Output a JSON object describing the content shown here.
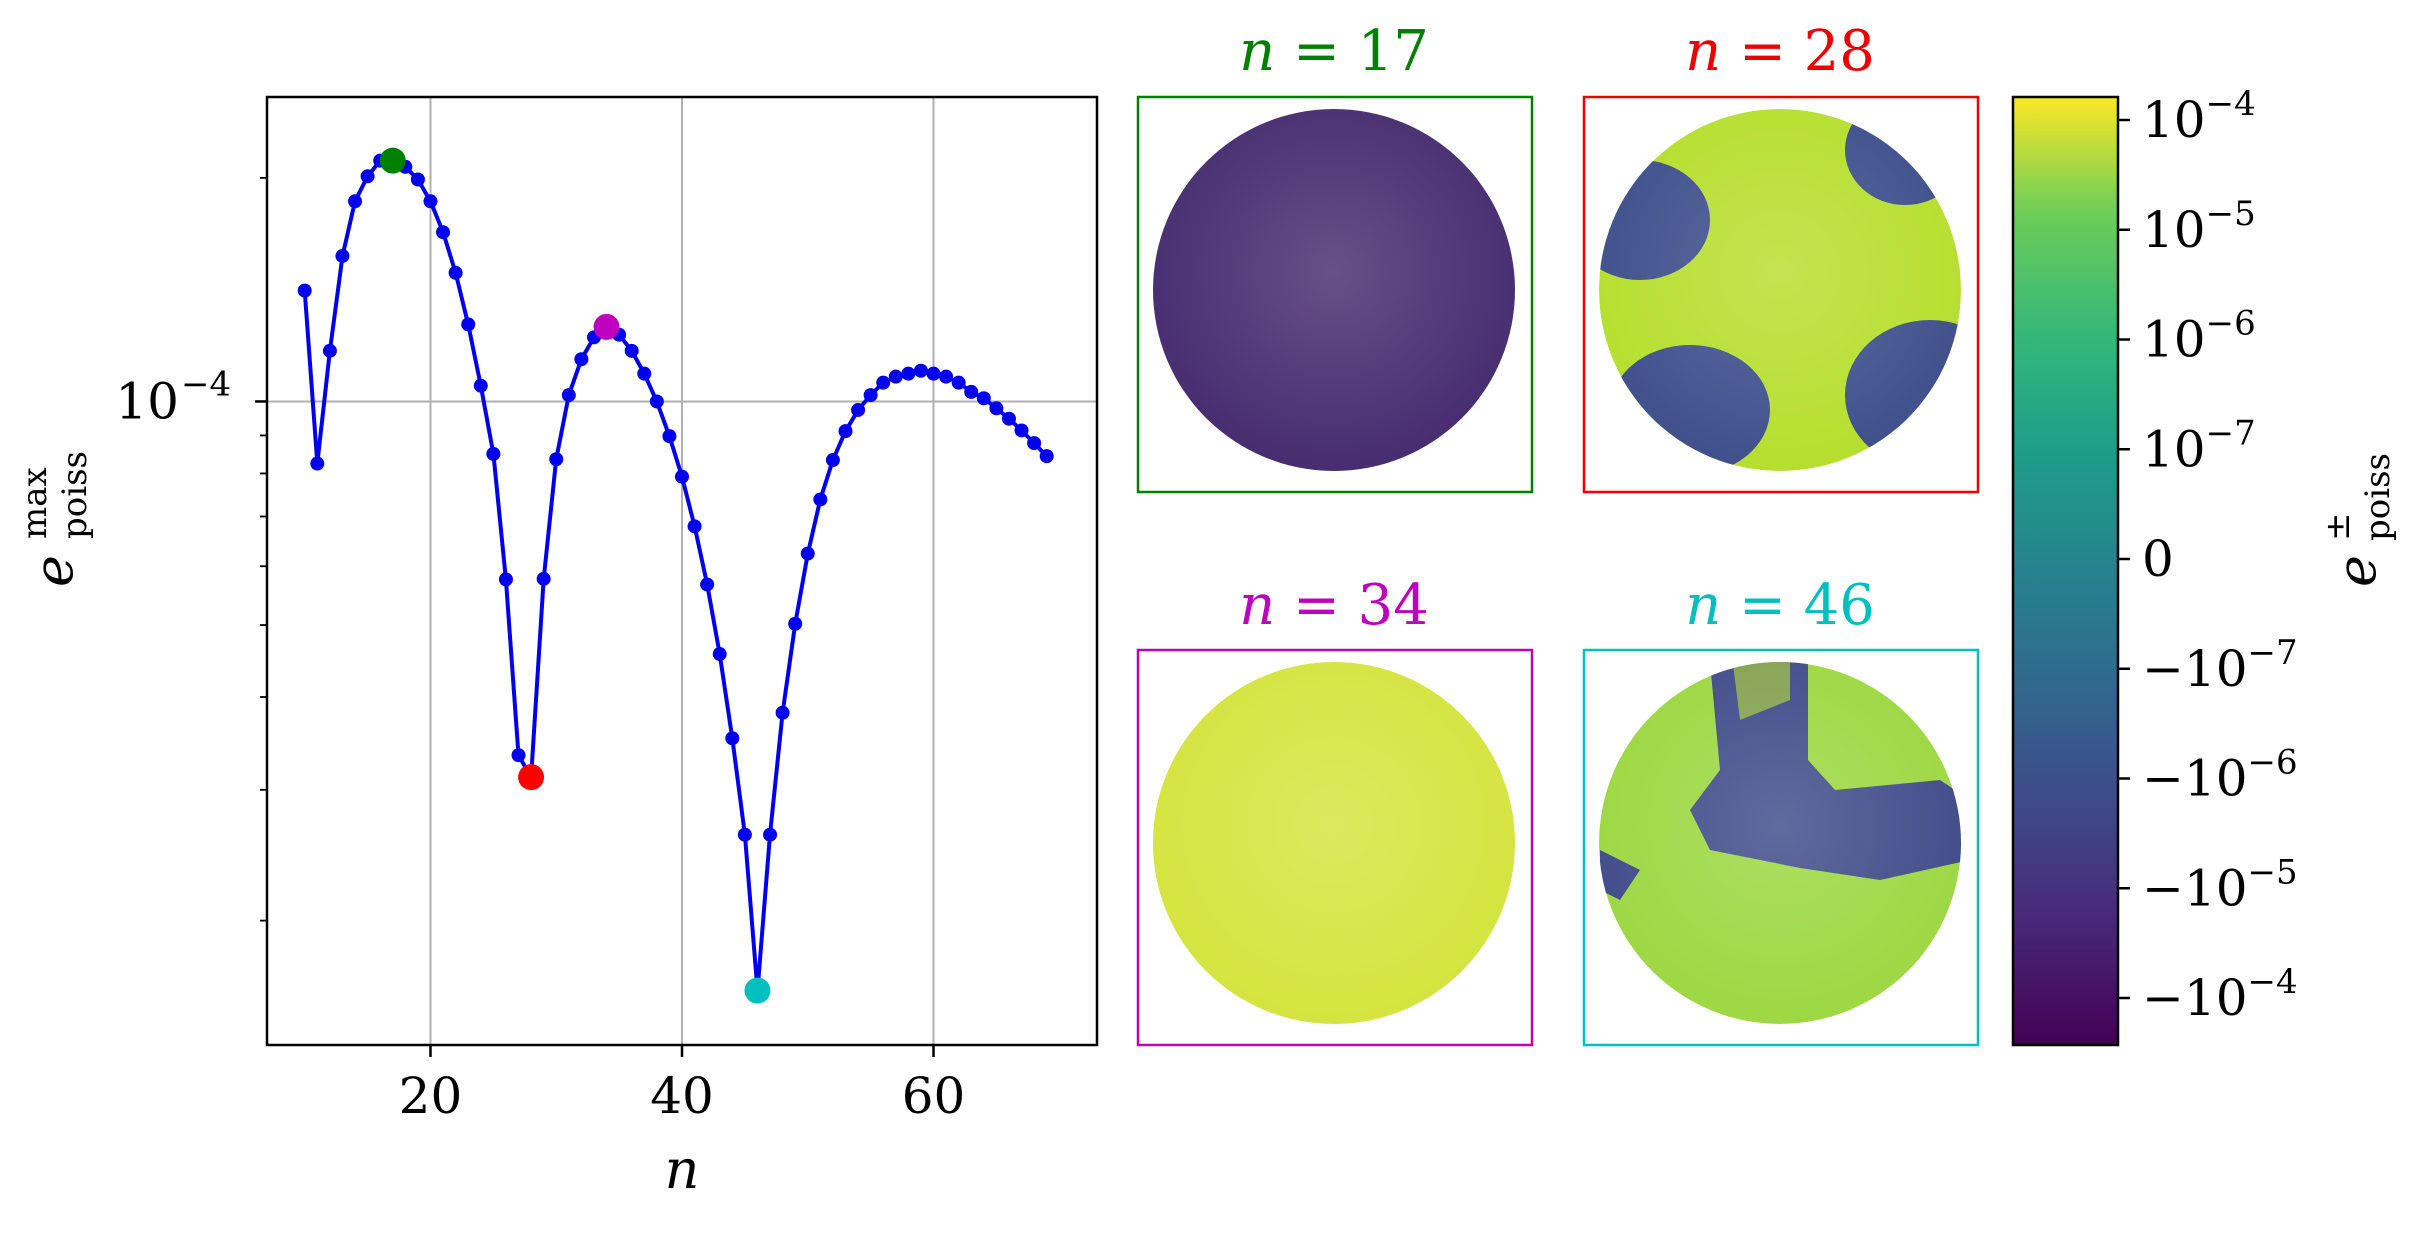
{
  "chart_data": [
    {
      "type": "line",
      "xlabel": "n",
      "ylabel": {
        "base": "e",
        "sup": "max",
        "sub": "poiss"
      },
      "xticks": [
        "20",
        "40",
        "60"
      ],
      "yticks": [
        {
          "base": "10",
          "exp": "−4",
          "value": 0.0001
        }
      ],
      "xlim": [
        7,
        73
      ],
      "ylim": [
        1.36e-05,
        0.000257
      ],
      "yscale": "log",
      "grid": true,
      "line_color": "#0000ee",
      "series": [
        {
          "x": [
            10,
            11,
            12,
            13,
            14,
            15,
            16,
            17,
            18,
            19,
            20,
            21,
            22,
            23,
            24,
            25,
            26,
            27,
            28,
            29,
            30,
            31,
            32,
            33,
            34,
            35,
            36,
            37,
            38,
            39,
            40,
            41,
            42,
            43,
            44,
            45,
            46,
            47,
            48,
            49,
            50,
            51,
            52,
            53,
            54,
            55,
            56,
            57,
            58,
            59,
            60,
            61,
            62,
            63,
            64,
            65,
            66,
            67,
            68,
            69
          ],
          "y": [
            0.000141,
            8.25e-05,
            0.000117,
            0.000157,
            0.000186,
            0.000201,
            0.000211,
            0.000211,
            0.000207,
            0.000199,
            0.000186,
            0.000169,
            0.000149,
            0.000127,
            0.000105,
            8.5e-05,
            5.76e-05,
            3.34e-05,
            3.12e-05,
            5.77e-05,
            8.36e-05,
            0.000102,
            0.000114,
            0.000122,
            0.000126,
            0.000123,
            0.000117,
            0.000109,
            0.0001,
            8.98e-05,
            7.92e-05,
            6.79e-05,
            5.67e-05,
            4.57e-05,
            3.52e-05,
            2.61e-05,
            1.61e-05,
            2.61e-05,
            3.81e-05,
            5.02e-05,
            6.24e-05,
            7.38e-05,
            8.34e-05,
            9.12e-05,
            9.74e-05,
            0.000102,
            0.000106,
            0.000108,
            0.000109,
            0.00011,
            0.000109,
            0.000108,
            0.000106,
            0.000103,
            0.000101,
            9.79e-05,
            9.48e-05,
            9.14e-05,
            8.79e-05,
            8.44e-05
          ]
        }
      ],
      "highlights": [
        {
          "x": 17,
          "y": 0.000211,
          "color": "#008000"
        },
        {
          "x": 28,
          "y": 3.12e-05,
          "color": "#ff0000"
        },
        {
          "x": 34,
          "y": 0.000126,
          "color": "#bf00bf"
        },
        {
          "x": 46,
          "y": 1.61e-05,
          "color": "#00bfbf"
        }
      ]
    },
    {
      "type": "heatmap",
      "panels": [
        {
          "n": "17",
          "title": "n = 17",
          "color": "#008000",
          "fill": "#442a6e"
        },
        {
          "n": "28",
          "title": "n = 28",
          "color": "#ee0000",
          "fill": "#b5de2b",
          "regions": "#3c4d8a"
        },
        {
          "n": "34",
          "title": "n = 34",
          "color": "#bf00bf",
          "fill": "#d9e33a"
        },
        {
          "n": "46",
          "title": "n = 46",
          "color": "#00bfbf",
          "fill": "#9cd740",
          "regions": "#3e4a89"
        }
      ]
    },
    {
      "type": "colorbar",
      "label": {
        "base": "e",
        "sup": "±",
        "sub": "poiss"
      },
      "ticks": [
        {
          "sign": "",
          "base": "10",
          "exp": "−4"
        },
        {
          "sign": "",
          "base": "10",
          "exp": "−5"
        },
        {
          "sign": "",
          "base": "10",
          "exp": "−6"
        },
        {
          "sign": "",
          "base": "10",
          "exp": "−7"
        },
        {
          "sign": "",
          "base": "0",
          "exp": ""
        },
        {
          "sign": "−",
          "base": "10",
          "exp": "−7"
        },
        {
          "sign": "−",
          "base": "10",
          "exp": "−6"
        },
        {
          "sign": "−",
          "base": "10",
          "exp": "−5"
        },
        {
          "sign": "−",
          "base": "10",
          "exp": "−4"
        }
      ],
      "colormap": "viridis"
    }
  ]
}
